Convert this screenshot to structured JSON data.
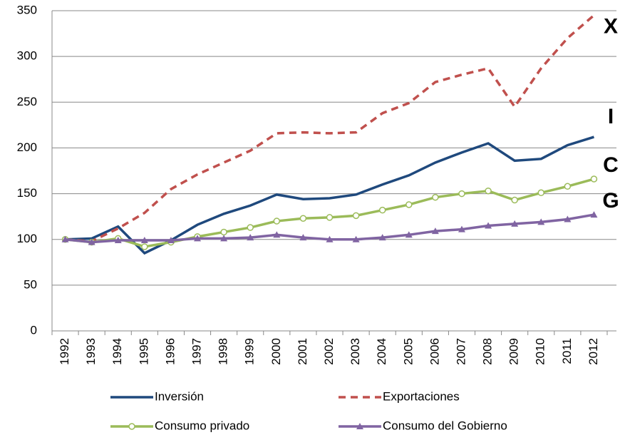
{
  "chart_data": {
    "type": "line",
    "categories": [
      "1992",
      "1993",
      "1994",
      "1995",
      "1996",
      "1997",
      "1998",
      "1999",
      "2000",
      "2001",
      "2002",
      "2003",
      "2004",
      "2005",
      "2006",
      "2007",
      "2008",
      "2009",
      "2010",
      "2011",
      "2012"
    ],
    "series": [
      {
        "name": "Inversión",
        "color": "#1f497d",
        "line_style": "solid",
        "marker": null,
        "values": [
          100,
          101,
          114,
          85,
          99,
          116,
          128,
          137,
          149,
          144,
          145,
          149,
          160,
          170,
          184,
          195,
          205,
          186,
          188,
          203,
          212
        ]
      },
      {
        "name": "Exportaciones",
        "color": "#c0504d",
        "line_style": "dashed",
        "marker": null,
        "values": [
          100,
          98,
          112,
          129,
          155,
          171,
          184,
          197,
          216,
          217,
          216,
          217,
          238,
          249,
          272,
          280,
          287,
          245,
          287,
          320,
          345
        ]
      },
      {
        "name": "Consumo privado",
        "color": "#9bbb59",
        "line_style": "solid",
        "marker": "circle",
        "values": [
          100,
          97,
          101,
          92,
          97,
          103,
          108,
          113,
          120,
          123,
          124,
          126,
          132,
          138,
          146,
          150,
          153,
          143,
          151,
          158,
          166
        ]
      },
      {
        "name": "Consumo del Gobierno",
        "color": "#8064a2",
        "line_style": "solid",
        "marker": "triangle",
        "values": [
          100,
          97,
          99,
          99,
          99,
          101,
          101,
          102,
          105,
          102,
          100,
          100,
          102,
          105,
          109,
          111,
          115,
          117,
          119,
          122,
          127
        ]
      }
    ],
    "annotations": [
      "I",
      "X",
      "C",
      "G"
    ],
    "ylim": [
      0,
      350
    ],
    "yticks": [
      0,
      50,
      100,
      150,
      200,
      250,
      300,
      350
    ],
    "grid": true
  }
}
